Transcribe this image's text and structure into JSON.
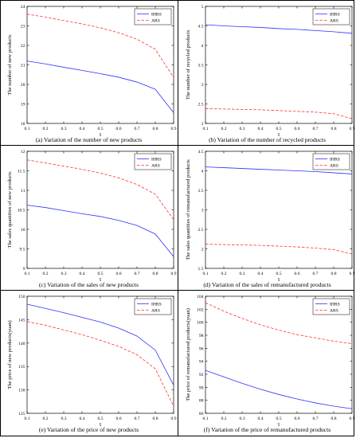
{
  "chart_data": [
    {
      "type": "line",
      "caption": "(a)   Variation of the number of new products",
      "xlabel": "τ",
      "ylabel": "The number of new products",
      "xlim": [
        0.1,
        0.9
      ],
      "ylim": [
        18,
        24
      ],
      "xticks": [
        "0.1",
        "0.2",
        "0.3",
        "0.4",
        "0.5",
        "0.6",
        "0.7",
        "0.8",
        "0.9"
      ],
      "yticks": [
        "18",
        "19",
        "20",
        "21",
        "22",
        "23",
        "24"
      ],
      "x": [
        0.1,
        0.2,
        0.3,
        0.4,
        0.5,
        0.6,
        0.7,
        0.8,
        0.9
      ],
      "series": [
        {
          "name": "IHRS",
          "values": [
            21.2,
            21.05,
            20.88,
            20.72,
            20.55,
            20.37,
            20.12,
            19.75,
            18.55
          ]
        },
        {
          "name": "ARS",
          "values": [
            23.6,
            23.45,
            23.27,
            23.1,
            22.9,
            22.65,
            22.32,
            21.8,
            20.35
          ]
        }
      ],
      "legend": "top-right"
    },
    {
      "type": "line",
      "caption": "(b)   Variation of the number of recycled products",
      "xlabel": "τ",
      "ylabel": "The number of recycled products",
      "xlim": [
        0.1,
        0.9
      ],
      "ylim": [
        2,
        5
      ],
      "xticks": [
        "0.1",
        "0.2",
        "0.3",
        "0.4",
        "0.5",
        "0.6",
        "0.7",
        "0.8",
        "0.9"
      ],
      "yticks": [
        "2",
        "2.5",
        "3",
        "3.5",
        "4",
        "4.5",
        "5"
      ],
      "x": [
        0.1,
        0.2,
        0.3,
        0.4,
        0.5,
        0.6,
        0.7,
        0.8,
        0.9
      ],
      "series": [
        {
          "name": "IHRS",
          "values": [
            4.53,
            4.5,
            4.48,
            4.46,
            4.43,
            4.41,
            4.38,
            4.35,
            4.31
          ]
        },
        {
          "name": "ARS",
          "values": [
            2.38,
            2.37,
            2.36,
            2.35,
            2.33,
            2.31,
            2.29,
            2.25,
            2.12
          ]
        }
      ],
      "legend": "top-right"
    },
    {
      "type": "line",
      "caption": "(c)     Variation of the sales of new products",
      "xlabel": "τ",
      "ylabel": "The sales quantities of new products",
      "xlim": [
        0.1,
        0.9
      ],
      "ylim": [
        9,
        12
      ],
      "xticks": [
        "0.1",
        "0.2",
        "0.3",
        "0.4",
        "0.5",
        "0.6",
        "0.7",
        "0.8",
        "0.9"
      ],
      "yticks": [
        "9",
        "9.5",
        "10",
        "10.5",
        "11",
        "11.5",
        "12"
      ],
      "x": [
        0.1,
        0.2,
        0.3,
        0.4,
        0.5,
        0.6,
        0.7,
        0.8,
        0.9
      ],
      "series": [
        {
          "name": "IHRS",
          "values": [
            10.62,
            10.56,
            10.48,
            10.4,
            10.33,
            10.23,
            10.1,
            9.88,
            9.3
          ]
        },
        {
          "name": "ARS",
          "values": [
            11.78,
            11.7,
            11.62,
            11.54,
            11.44,
            11.32,
            11.15,
            10.9,
            10.25
          ]
        }
      ],
      "legend": "top-right"
    },
    {
      "type": "line",
      "caption": "(d)    Variation of the sales of remanufactured products",
      "xlabel": "τ",
      "ylabel": "The sales quantities of remanufactured products",
      "xlim": [
        0.1,
        0.9
      ],
      "ylim": [
        1.5,
        4.5
      ],
      "xticks": [
        "0.1",
        "0.2",
        "0.3",
        "0.4",
        "0.5",
        "0.6",
        "0.7",
        "0.8",
        "0.9"
      ],
      "yticks": [
        "1.5",
        "2",
        "2.5",
        "3",
        "3.5",
        "4",
        "4.5"
      ],
      "x": [
        0.1,
        0.2,
        0.3,
        0.4,
        0.5,
        0.6,
        0.7,
        0.8,
        0.9
      ],
      "series": [
        {
          "name": "IHRS",
          "values": [
            4.1,
            4.08,
            4.06,
            4.04,
            4.02,
            4.0,
            3.98,
            3.95,
            3.92
          ]
        },
        {
          "name": "ARS",
          "values": [
            2.12,
            2.11,
            2.1,
            2.09,
            2.07,
            2.05,
            2.02,
            1.98,
            1.87
          ]
        }
      ],
      "legend": "top-right"
    },
    {
      "type": "line",
      "caption": "(e) Variation of the price of new products",
      "xlabel": "τ",
      "ylabel": "The price of new products(yuan)",
      "xlim": [
        0.1,
        0.9
      ],
      "ylim": [
        125,
        150
      ],
      "xticks": [
        "0.1",
        "0.2",
        "0.3",
        "0.4",
        "0.5",
        "0.6",
        "0.7",
        "0.8",
        "0.9"
      ],
      "yticks": [
        "125",
        "130",
        "135",
        "140",
        "145",
        "150"
      ],
      "x": [
        0.1,
        0.2,
        0.3,
        0.4,
        0.5,
        0.6,
        0.7,
        0.8,
        0.9
      ],
      "series": [
        {
          "name": "IHRS",
          "values": [
            148.3,
            147.4,
            146.5,
            145.5,
            144.5,
            143.2,
            141.5,
            138.5,
            131.0
          ]
        },
        {
          "name": "ARS",
          "values": [
            144.6,
            143.8,
            142.8,
            141.8,
            140.6,
            139.3,
            137.5,
            134.5,
            126.5
          ]
        }
      ],
      "legend": "top-right"
    },
    {
      "type": "line",
      "caption": "(f) Variation of the price of remanufactured products",
      "xlabel": "τ",
      "ylabel": "The price of remanufactured products(yuan)",
      "xlim": [
        0.1,
        0.9
      ],
      "ylim": [
        86,
        104
      ],
      "xticks": [
        "0.1",
        "0.2",
        "0.3",
        "0.4",
        "0.5",
        "0.6",
        "0.7",
        "0.8",
        "0.9"
      ],
      "yticks": [
        "86",
        "88",
        "90",
        "92",
        "94",
        "96",
        "98",
        "100",
        "102",
        "104"
      ],
      "x": [
        0.1,
        0.2,
        0.3,
        0.4,
        0.5,
        0.6,
        0.7,
        0.8,
        0.9
      ],
      "series": [
        {
          "name": "IHRS",
          "values": [
            92.6,
            91.6,
            90.6,
            89.7,
            88.9,
            88.2,
            87.6,
            87.1,
            86.7
          ]
        },
        {
          "name": "ARS",
          "values": [
            103.0,
            101.7,
            100.6,
            99.6,
            98.8,
            98.1,
            97.6,
            97.1,
            96.7
          ]
        }
      ],
      "legend": "top-right"
    }
  ],
  "colors": {
    "IHRS": "#3030ff",
    "ARS": "#ff3030"
  }
}
